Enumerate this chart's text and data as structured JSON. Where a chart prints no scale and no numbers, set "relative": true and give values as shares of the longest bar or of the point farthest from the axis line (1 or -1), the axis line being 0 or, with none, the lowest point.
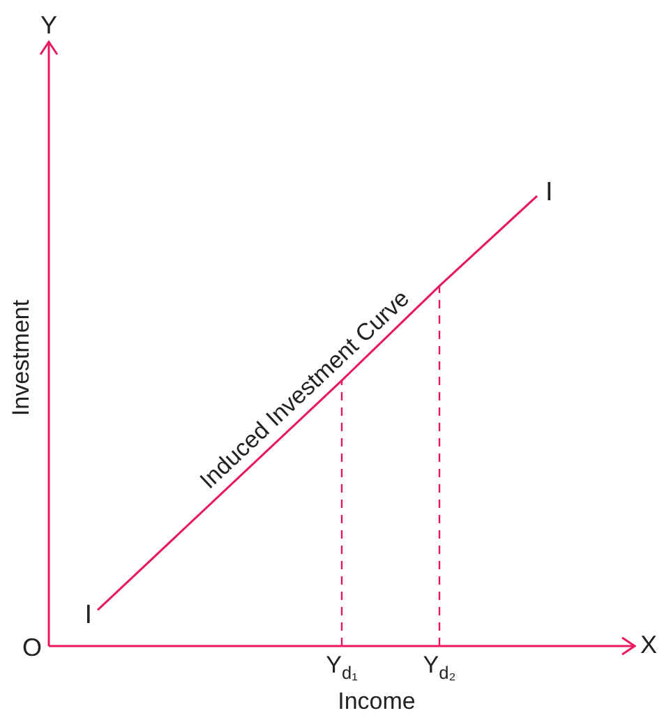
{
  "chart_data": {
    "type": "line",
    "relative": true,
    "xlabel": "Income",
    "ylabel": "Investment",
    "categories": [
      null,
      null,
      null,
      null,
      null,
      null,
      "Y$_{d₁}$",
      null,
      "Y$_{d₂}$",
      null,
      null,
      null,
      null
    ],
    "series": [
      {
        "color": "#e8185a",
        "values": [
          null,
          0.08,
          null,
          null,
          null,
          null,
          0.59,
          null,
          0.8,
          null,
          1,
          null,
          null
        ]
      }
    ],
    "ref_lines": [
      {
        "axis": "x",
        "value": "Y$_{d₁}$",
        "line_style": "dashed",
        "color": "#e8185a"
      },
      {
        "axis": "x",
        "value": "Y$_{d₂}$",
        "line_style": "dashed",
        "color": "#e8185a"
      }
    ],
    "annotations": [
      "Induced Investment Curve",
      "I",
      "I",
      "O",
      "X",
      "Y"
    ],
    "legend": false,
    "marker": "none",
    "line_style": "solid"
  }
}
